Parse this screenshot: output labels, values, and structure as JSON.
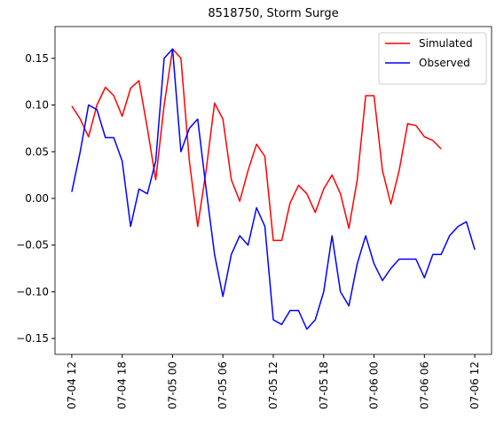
{
  "chart_data": {
    "type": "line",
    "title": "8518750, Storm Surge",
    "x": [
      "07-04 12",
      "07-04 13",
      "07-04 14",
      "07-04 15",
      "07-04 16",
      "07-04 17",
      "07-04 18",
      "07-04 19",
      "07-04 20",
      "07-04 21",
      "07-04 22",
      "07-04 23",
      "07-05 00",
      "07-05 01",
      "07-05 02",
      "07-05 03",
      "07-05 04",
      "07-05 05",
      "07-05 06",
      "07-05 07",
      "07-05 08",
      "07-05 09",
      "07-05 10",
      "07-05 11",
      "07-05 12",
      "07-05 13",
      "07-05 14",
      "07-05 15",
      "07-05 16",
      "07-05 17",
      "07-05 18",
      "07-05 19",
      "07-05 20",
      "07-05 21",
      "07-05 22",
      "07-05 23",
      "07-06 00",
      "07-06 01",
      "07-06 02",
      "07-06 03",
      "07-06 04",
      "07-06 05",
      "07-06 06",
      "07-06 07",
      "07-06 08",
      "07-06 09",
      "07-06 10",
      "07-06 11",
      "07-06 12"
    ],
    "series": [
      {
        "name": "Simulated",
        "color": "#ff0000",
        "values": [
          0.099,
          0.085,
          0.066,
          0.1,
          0.119,
          0.11,
          0.088,
          0.118,
          0.126,
          0.075,
          0.02,
          0.1,
          0.16,
          0.15,
          0.04,
          -0.03,
          0.03,
          0.102,
          0.085,
          0.02,
          -0.003,
          0.03,
          0.058,
          0.045,
          -0.045,
          -0.045,
          -0.005,
          0.014,
          0.005,
          -0.015,
          0.01,
          0.025,
          0.005,
          -0.032,
          0.02,
          0.11,
          0.11,
          0.03,
          -0.006,
          0.03,
          0.08,
          0.078,
          0.066,
          0.062,
          0.053,
          null,
          null,
          null,
          null
        ]
      },
      {
        "name": "Observed",
        "color": "#0000ff",
        "values": [
          0.007,
          0.05,
          0.1,
          0.095,
          0.065,
          0.065,
          0.04,
          -0.03,
          0.01,
          0.005,
          0.04,
          0.15,
          0.16,
          0.05,
          0.075,
          0.085,
          0.01,
          -0.06,
          -0.105,
          -0.06,
          -0.04,
          -0.05,
          -0.01,
          -0.03,
          -0.13,
          -0.135,
          -0.12,
          -0.12,
          -0.14,
          -0.13,
          -0.1,
          -0.04,
          -0.1,
          -0.115,
          -0.07,
          -0.04,
          -0.07,
          -0.088,
          -0.075,
          -0.065,
          -0.065,
          -0.065,
          -0.085,
          -0.06,
          -0.06,
          -0.04,
          -0.03,
          -0.025,
          -0.055
        ]
      }
    ],
    "xlim": [
      "07-04 10",
      "07-06 14"
    ],
    "xticks": [
      "07-04 12",
      "07-04 18",
      "07-05 00",
      "07-05 06",
      "07-05 12",
      "07-05 18",
      "07-06 00",
      "07-06 06",
      "07-06 12"
    ],
    "ylim": [
      -0.167,
      0.184
    ],
    "yticks": [
      {
        "value": -0.15,
        "label": "−0.15"
      },
      {
        "value": -0.1,
        "label": "−0.10"
      },
      {
        "value": -0.05,
        "label": "−0.05"
      },
      {
        "value": 0,
        "label": "0.00"
      },
      {
        "value": 0.05,
        "label": "0.05"
      },
      {
        "value": 0.1,
        "label": "0.10"
      },
      0.15
    ],
    "legend": "upper right"
  }
}
